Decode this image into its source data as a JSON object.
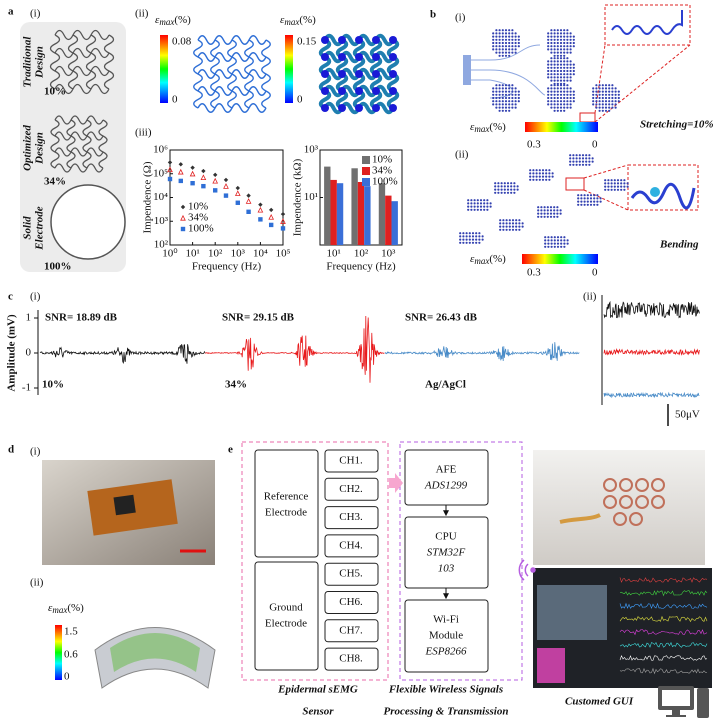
{
  "panel_a": {
    "label": "a",
    "sub_i": "(i)",
    "sub_ii": "(ii)",
    "sub_iii": "(iii)",
    "designs": [
      {
        "name": [
          "Traditional",
          "Design"
        ],
        "percent": "10%"
      },
      {
        "name": [
          "Optimized",
          "Design"
        ],
        "percent": "34%"
      },
      {
        "name": [
          "Solid",
          "Electrode"
        ],
        "percent": "100%"
      }
    ],
    "colorbars": [
      {
        "symbol": "ε",
        "sub": "max",
        "unit": "(%)",
        "max": "0.08",
        "min": "0"
      },
      {
        "symbol": "ε",
        "sub": "max",
        "unit": "(%)",
        "max": "0.15",
        "min": "0"
      }
    ]
  },
  "panel_b": {
    "label": "b",
    "sub_i": "(i)",
    "sub_ii": "(ii)",
    "stretching": "Stretching=10%",
    "bending": "Bending",
    "colorbars": [
      {
        "symbol": "ε",
        "sub": "max",
        "unit": "(%)",
        "max": "0.3",
        "min": "0"
      },
      {
        "symbol": "ε",
        "sub": "max",
        "unit": "(%)",
        "max": "0.3",
        "min": "0"
      }
    ]
  },
  "panel_c": {
    "label": "c",
    "sub_i": "(i)",
    "sub_ii": "(ii)",
    "ylabel": "Amplitude (mV)",
    "yticks": [
      "1",
      "0",
      "-1"
    ],
    "traces": [
      {
        "snr": "SNR= 18.89 dB",
        "name": "10%",
        "color": "#111111"
      },
      {
        "snr": "SNR= 29.15 dB",
        "name": "34%",
        "color": "#e8191b"
      },
      {
        "snr": "SNR= 26.43 dB",
        "name": "Ag/AgCl",
        "color": "#4a8cc8"
      }
    ],
    "scale": "50μV"
  },
  "panel_d": {
    "label": "d",
    "sub_i": "(i)",
    "sub_ii": "(ii)",
    "colorbar": {
      "symbol": "ε",
      "sub": "max",
      "unit": "(%)",
      "ticks": [
        "1.5",
        "0.6",
        "0"
      ]
    }
  },
  "panel_e": {
    "label": "e",
    "reference": [
      "Reference",
      "Electrode"
    ],
    "ground": [
      "Ground",
      "Electrode"
    ],
    "channels": [
      "CH1.",
      "CH2.",
      "CH3.",
      "CH4.",
      "CH5.",
      "CH6.",
      "CH7.",
      "CH8."
    ],
    "afe": [
      "AFE",
      "ADS1299"
    ],
    "cpu": [
      "CPU",
      "STM32F",
      "103"
    ],
    "wifi": [
      "Wi-Fi",
      "Module",
      "ESP8266"
    ],
    "sensor_caption": [
      "Epidermal sEMG",
      "Sensor"
    ],
    "wireless_caption": [
      "Flexible Wireless Signals",
      "Processing & Transmission"
    ],
    "gui_caption": "Customed GUI"
  },
  "chart_data": [
    {
      "type": "scatter",
      "xlabel": "Frequency (Hz)",
      "ylabel": "Impendence (Ω)",
      "xscale": "log",
      "yscale": "log",
      "xlim": [
        1,
        100000
      ],
      "ylim": [
        100,
        1000000
      ],
      "xticks": [
        {
          "value": 1,
          "label": "10⁰"
        },
        {
          "value": 10,
          "label": "10¹"
        },
        {
          "value": 100,
          "label": "10²"
        },
        {
          "value": 1000,
          "label": "10³"
        },
        {
          "value": 10000,
          "label": "10⁴"
        },
        {
          "value": 100000,
          "label": "10⁵"
        }
      ],
      "yticks": [
        {
          "value": 100,
          "label": "10²"
        },
        {
          "value": 1000,
          "label": "10³"
        },
        {
          "value": 10000,
          "label": "10⁴"
        },
        {
          "value": 100000,
          "label": "10⁵"
        },
        {
          "value": 1000000,
          "label": "10⁶"
        }
      ],
      "legend": "lower left",
      "x": [
        1,
        3,
        10,
        30,
        100,
        300,
        1000,
        3000,
        10000,
        30000,
        100000
      ],
      "series": [
        {
          "name": "10%",
          "color": "#333333",
          "marker": "diamond",
          "values": [
            300000,
            250000,
            180000,
            130000,
            90000,
            55000,
            25000,
            12000,
            5000,
            3000,
            2000
          ]
        },
        {
          "name": "34%",
          "color": "#e02020",
          "marker": "triangle",
          "values": [
            150000,
            120000,
            100000,
            70000,
            50000,
            30000,
            15000,
            7000,
            3000,
            1500,
            1000
          ]
        },
        {
          "name": "100%",
          "color": "#2f6fd6",
          "marker": "square",
          "values": [
            60000,
            50000,
            40000,
            30000,
            20000,
            12000,
            6000,
            2500,
            1200,
            700,
            500
          ]
        }
      ]
    },
    {
      "type": "bar",
      "xlabel": "Frequency (Hz)",
      "ylabel": "Impendence (kΩ)",
      "yscale": "log",
      "ylim": [
        0.1,
        1000
      ],
      "yticks": [
        {
          "value": 10,
          "label": "10¹"
        },
        {
          "value": 1000,
          "label": "10³"
        }
      ],
      "legend": "upper right",
      "categories": [
        "10¹",
        "10²",
        "10³"
      ],
      "series": [
        {
          "name": "10%",
          "color": "#707070",
          "values": [
            200,
            170,
            40
          ]
        },
        {
          "name": "34%",
          "color": "#e02020",
          "values": [
            55,
            45,
            12
          ]
        },
        {
          "name": "100%",
          "color": "#3a6fd8",
          "values": [
            40,
            30,
            7
          ]
        }
      ]
    }
  ]
}
